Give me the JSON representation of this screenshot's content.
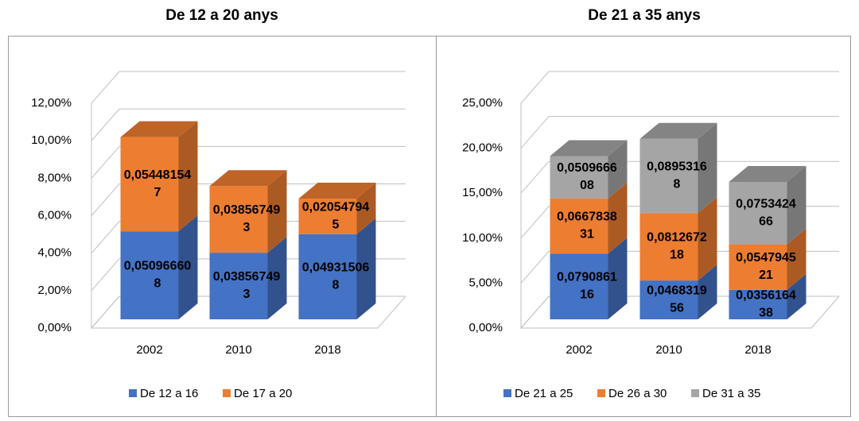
{
  "chart_data": [
    {
      "type": "bar3d_stacked",
      "title": "De 12 a 20 anys",
      "categories": [
        "2002",
        "2010",
        "2018"
      ],
      "series": [
        {
          "name": "De 12 a 16",
          "color": "#4472c4",
          "values": [
            5.0966608,
            3.8567493,
            4.9315068
          ],
          "value_labels": [
            "0,050966608",
            "0,038567493",
            "0,049315068"
          ]
        },
        {
          "name": "De 17 a 20",
          "color": "#ed7d31",
          "values": [
            5.4481547,
            3.8567493,
            2.0547945
          ],
          "value_labels": [
            "0,054481547",
            "0,038567493",
            "0,020547945"
          ]
        }
      ],
      "ylim": [
        0,
        12
      ],
      "yticks": [
        {
          "value": 0,
          "label": "0,00%"
        },
        {
          "value": 2,
          "label": "2,00%"
        },
        {
          "value": 4,
          "label": "4,00%"
        },
        {
          "value": 6,
          "label": "6,00%"
        },
        {
          "value": 8,
          "label": "8,00%"
        },
        {
          "value": 10,
          "label": "10,00%"
        },
        {
          "value": 12,
          "label": "12,00%"
        }
      ],
      "grid": true,
      "legend": "bottom"
    },
    {
      "type": "bar3d_stacked",
      "title": "De 21 a 35 anys",
      "categories": [
        "2002",
        "2010",
        "2018"
      ],
      "series": [
        {
          "name": "De 21 a 25",
          "color": "#4472c4",
          "values": [
            7.9086116,
            4.6831956,
            3.5616438
          ],
          "value_labels": [
            "0,079086116",
            "0,046831956",
            "0,035616438"
          ]
        },
        {
          "name": "De 26 a 30",
          "color": "#ed7d31",
          "values": [
            6.6783831,
            8.1267218,
            5.4794521
          ],
          "value_labels": [
            "0,066783831",
            "0,081267218",
            "0,054794521"
          ]
        },
        {
          "name": "De 31 a 35",
          "color": "#a5a5a5",
          "values": [
            5.0966608,
            8.953168,
            7.5342466
          ],
          "value_labels": [
            "0,050966608",
            "0,08953168",
            "0,075342466"
          ]
        }
      ],
      "ylim": [
        0,
        25
      ],
      "yticks": [
        {
          "value": 0,
          "label": "0,00%"
        },
        {
          "value": 5,
          "label": "5,00%"
        },
        {
          "value": 10,
          "label": "10,00%"
        },
        {
          "value": 15,
          "label": "15,00%"
        },
        {
          "value": 20,
          "label": "20,00%"
        },
        {
          "value": 25,
          "label": "25,00%"
        }
      ],
      "grid": true,
      "legend": "bottom"
    }
  ]
}
